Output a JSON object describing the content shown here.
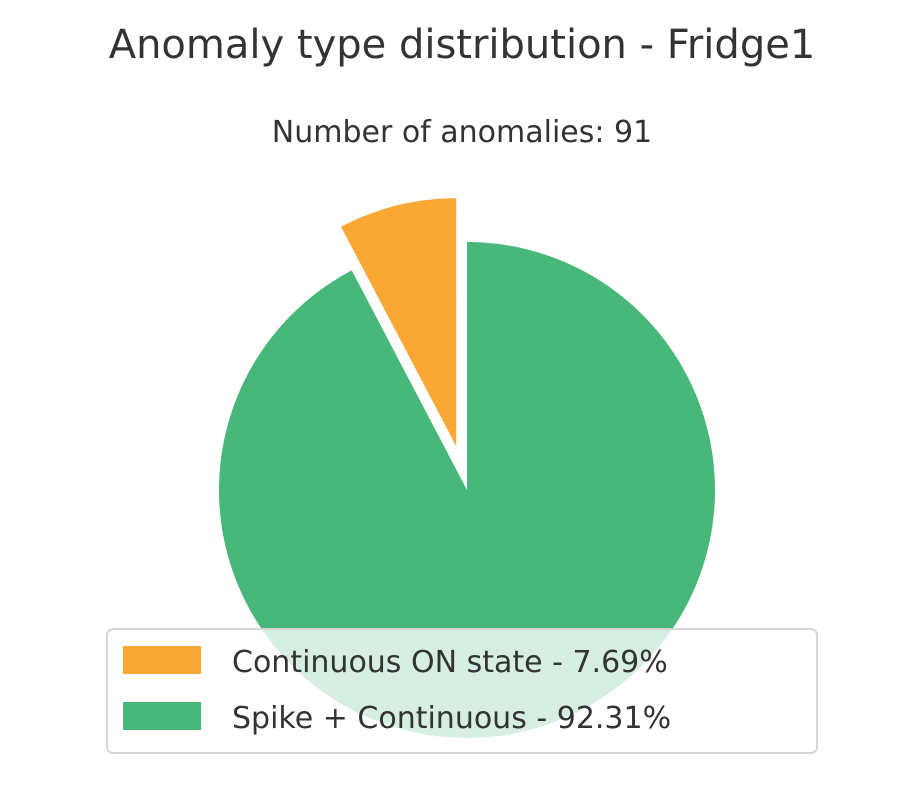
{
  "chart_data": {
    "type": "pie",
    "title": "Anomaly type distribution - Fridge1",
    "subtitle": "Number of anomalies: 91",
    "slices": [
      {
        "label": "Continuous ON state",
        "value": 7.69,
        "color": "#F9A834",
        "exploded": true,
        "legend_label": "Continuous ON state - 7.69%"
      },
      {
        "label": "Spike + Continuous",
        "value": 92.31,
        "color": "#47B77A",
        "exploded": false,
        "legend_label": "Spike + Continuous - 92.31%"
      }
    ],
    "legend_placement": "lower-center",
    "start_angle": 90,
    "direction": "counterclockwise"
  }
}
